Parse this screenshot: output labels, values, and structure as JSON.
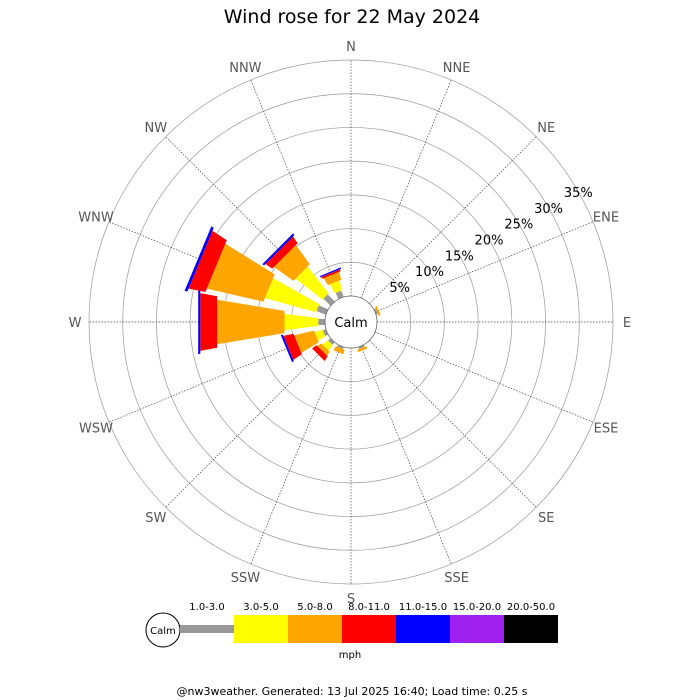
{
  "chart_data": {
    "type": "wind-rose",
    "title": "Wind rose for 22 May 2024",
    "directions": [
      "N",
      "NNE",
      "NE",
      "ENE",
      "E",
      "ESE",
      "SE",
      "SSE",
      "S",
      "SSW",
      "SW",
      "WSW",
      "W",
      "WNW",
      "NW",
      "NNW"
    ],
    "radial_ticks": [
      "5%",
      "10%",
      "15%",
      "20%",
      "25%",
      "30%",
      "35%"
    ],
    "radial_values": [
      5,
      10,
      15,
      20,
      25,
      30,
      35
    ],
    "radial_max": 35,
    "calm_label": "Calm",
    "unit": "mph",
    "speed_bins": [
      {
        "label": "1.0-3.0",
        "color": "#999999"
      },
      {
        "label": "3.0-5.0",
        "color": "#ffff00"
      },
      {
        "label": "5.0-8.0",
        "color": "#ffa500"
      },
      {
        "label": "8.0-11.0",
        "color": "#ff0000"
      },
      {
        "label": "11.0-15.0",
        "color": "#0000ff"
      },
      {
        "label": "15.0-20.0",
        "color": "#a020f0"
      },
      {
        "label": "20.0-50.0",
        "color": "#000000"
      }
    ],
    "series": [
      {
        "direction": "N",
        "values": [
          0.0,
          0.0,
          0.0,
          0.0,
          0.0,
          0,
          0
        ]
      },
      {
        "direction": "NNE",
        "values": [
          0.0,
          0.0,
          0.0,
          0.0,
          0.0,
          0,
          0
        ]
      },
      {
        "direction": "NE",
        "values": [
          0.0,
          0.0,
          0.0,
          0.0,
          0.0,
          0,
          0
        ]
      },
      {
        "direction": "ENE",
        "values": [
          0.3,
          0.0,
          0.3,
          0.0,
          0.0,
          0,
          0
        ]
      },
      {
        "direction": "E",
        "values": [
          0.0,
          0.0,
          0.0,
          0.0,
          0.0,
          0,
          0
        ]
      },
      {
        "direction": "ESE",
        "values": [
          0.0,
          0.0,
          0.0,
          0.0,
          0.0,
          0,
          0
        ]
      },
      {
        "direction": "SE",
        "values": [
          0.0,
          0.0,
          0.0,
          0.0,
          0.0,
          0,
          0
        ]
      },
      {
        "direction": "SSE",
        "values": [
          0.3,
          0.0,
          0.4,
          0.0,
          0.0,
          0,
          0
        ]
      },
      {
        "direction": "SSW",
        "values": [
          0.3,
          0.0,
          0.7,
          0.0,
          0.0,
          0,
          0
        ]
      },
      {
        "direction": "SW",
        "values": [
          0.5,
          1.0,
          0.7,
          0.8,
          0.0,
          0,
          0
        ]
      },
      {
        "direction": "WSW",
        "values": [
          0.5,
          1.2,
          3.0,
          1.5,
          0.3,
          0,
          0
        ]
      },
      {
        "direction": "W",
        "values": [
          1.0,
          5.0,
          10.0,
          2.5,
          0.3,
          0,
          0
        ]
      },
      {
        "direction": "WNW",
        "values": [
          1.5,
          7.8,
          8.5,
          2.5,
          0.4,
          0,
          0
        ]
      },
      {
        "direction": "NW",
        "values": [
          1.5,
          5.0,
          3.5,
          1.2,
          0.3,
          0,
          0
        ]
      },
      {
        "direction": "NNW",
        "values": [
          1.0,
          1.5,
          1.2,
          0.3,
          0.2,
          0,
          0
        ]
      }
    ]
  },
  "footer": "@nw3weather. Generated: 13 Jul 2025 16:40; Load time: 0.25 s"
}
